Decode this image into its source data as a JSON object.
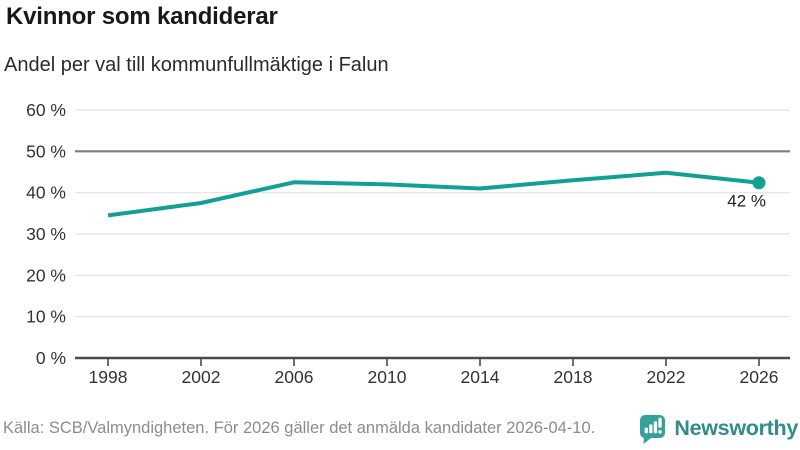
{
  "chart_data": {
    "type": "line",
    "title": "Kvinnor som kandiderar",
    "subtitle": "Andel per val till kommunfullmäktige i Falun",
    "x": [
      1998,
      2002,
      2006,
      2010,
      2014,
      2018,
      2022,
      2026
    ],
    "xtick_labels": [
      "1998",
      "2002",
      "2006",
      "2010",
      "2014",
      "2018",
      "2022",
      "2026"
    ],
    "values": [
      34.5,
      37.5,
      42.5,
      42,
      41,
      43,
      44.8,
      42.4
    ],
    "ylim": [
      0,
      60
    ],
    "ytick_step": 10,
    "ytick_suffix": " %",
    "grid": true,
    "emphasized_gridline": 50,
    "legend": "none",
    "end_label": "42 %",
    "colors": {
      "line": "#12a095",
      "marker": "#12a095",
      "grid": "#e3e3e3",
      "grid_emphasis": "#7d7d7d",
      "axis": "#4a4a4a",
      "tick_text": "#333333",
      "end_label_text": "#222222",
      "title": "#181818",
      "subtitle": "#2b2b2b",
      "source_text": "#8c8c8c",
      "brand_text": "#2f8e8a",
      "brand_icon": "#35a29a"
    }
  },
  "footer": {
    "source": "Källa: SCB/Valmyndigheten. För 2026 gäller det anmälda kandidater 2026-04-10.",
    "brand": "Newsworthy"
  }
}
